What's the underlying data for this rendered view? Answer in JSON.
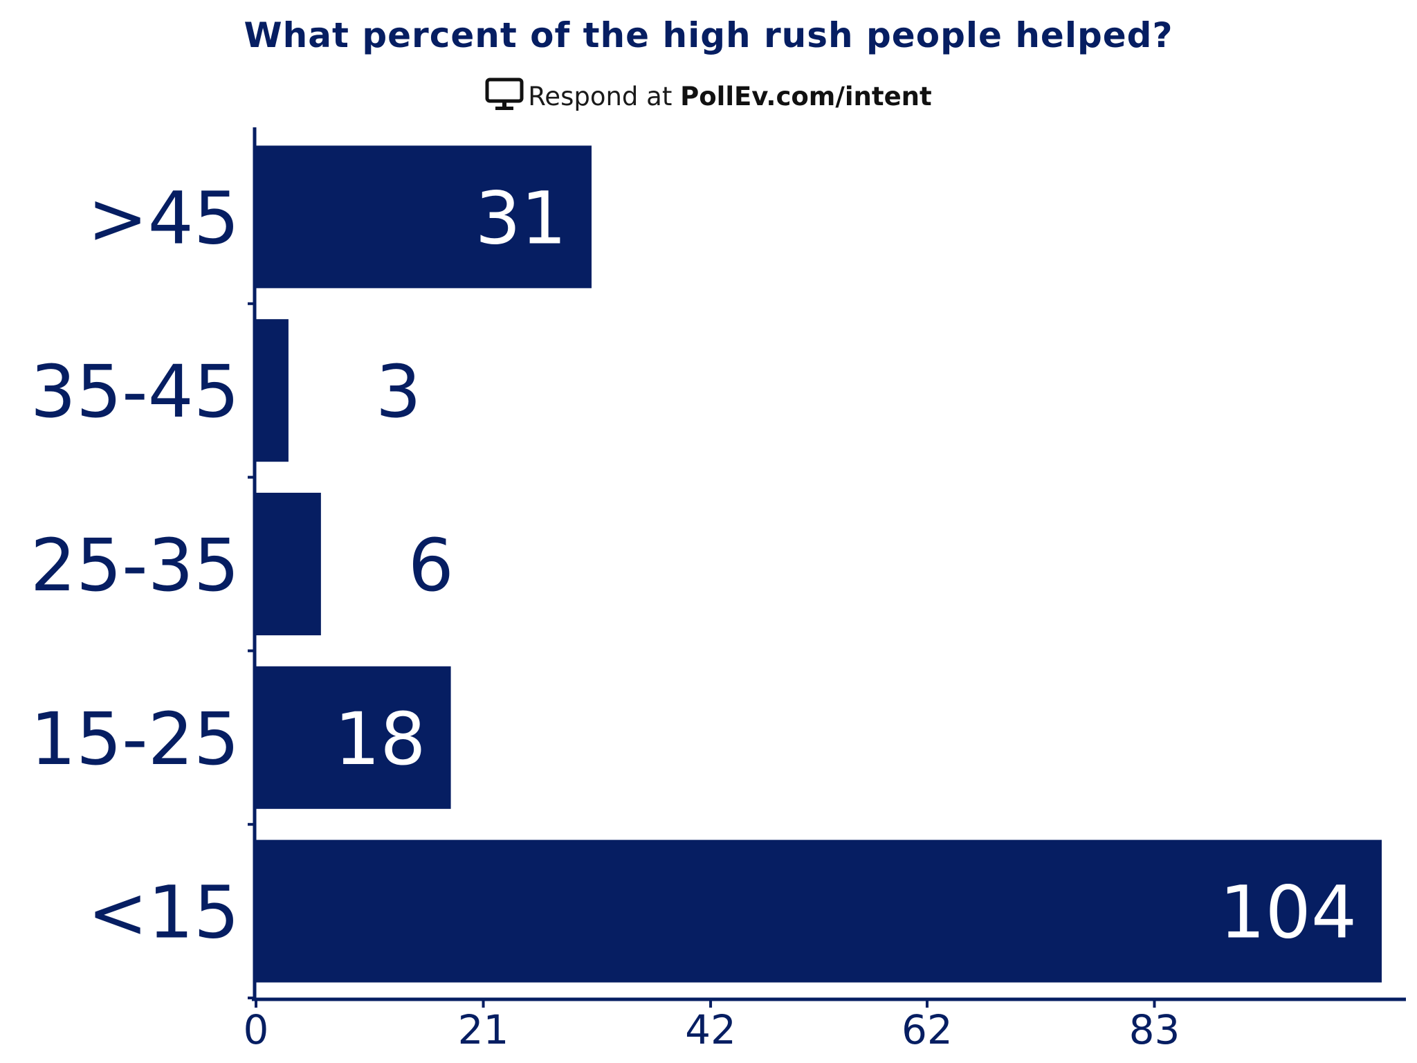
{
  "header": {
    "title": "What percent of the high rush people helped?",
    "subtitle_prefix": "Respond at",
    "subtitle_url": "PollEv.com/intent",
    "subtitle_icon": "monitor-icon"
  },
  "colors": {
    "bar": "#061e62",
    "axis": "#061e62",
    "label_inside": "#ffffff",
    "label_outside": "#061e62"
  },
  "chart_data": {
    "type": "bar",
    "orientation": "horizontal",
    "title": "What percent of the high rush people helped?",
    "categories": [
      ">45",
      "35-45",
      "25-35",
      "15-25",
      "<15"
    ],
    "values": [
      31,
      3,
      6,
      18,
      104
    ],
    "xticks": [
      0,
      21,
      42,
      62,
      83
    ],
    "xlim": [
      0,
      104
    ],
    "xlabel": "",
    "ylabel": "",
    "grid": false,
    "legend": "none"
  }
}
